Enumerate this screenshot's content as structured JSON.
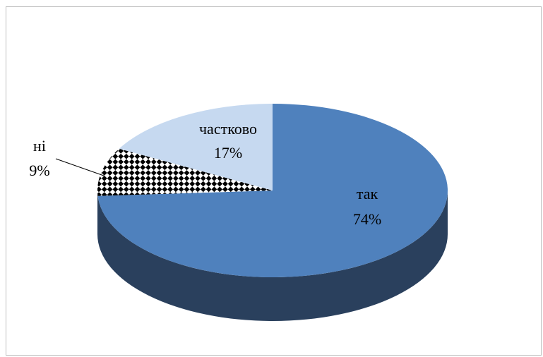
{
  "chart_data": {
    "type": "pie",
    "style": "3d",
    "title": "",
    "slices": [
      {
        "label": "так",
        "value": 74,
        "value_label": "74%",
        "color": "#4f81bd",
        "side_color": "#2a405d",
        "pattern": "none"
      },
      {
        "label": "ні",
        "value": 9,
        "value_label": "9%",
        "color": "#ffffff",
        "side_color": "#2a405d",
        "pattern": "checker"
      },
      {
        "label": "частково",
        "value": 17,
        "value_label": "17%",
        "color": "#c6d9f0",
        "side_color": "#2a405d",
        "pattern": "none"
      }
    ],
    "legend": "none"
  }
}
